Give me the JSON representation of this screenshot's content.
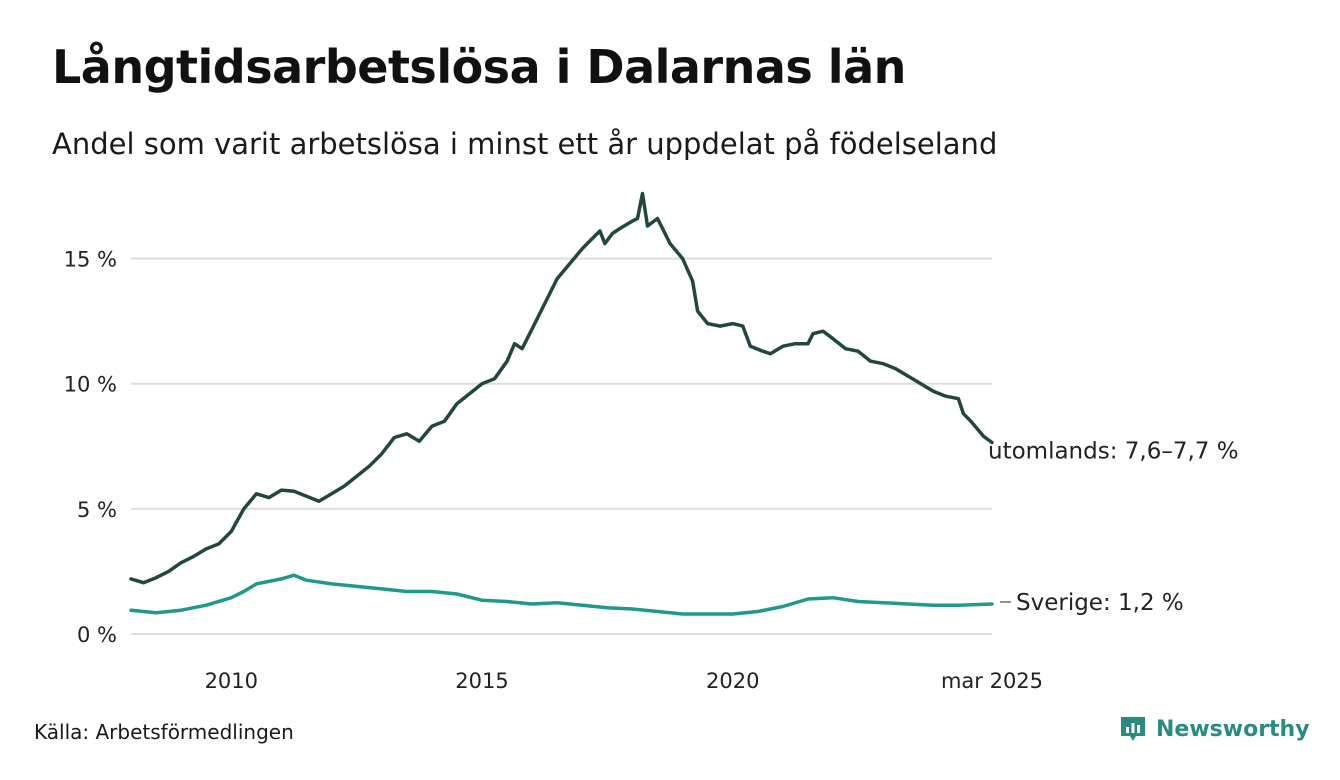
{
  "header": {
    "title": "Långtidsarbetslösa i Dalarnas län",
    "subtitle": "Andel som varit arbetslösa i minst ett år uppdelat på födelseland"
  },
  "footer": {
    "source": "Källa: Arbetsförmedlingen",
    "brand": "Newsworthy",
    "brand_icon": "newsworthy-logo-icon"
  },
  "colors": {
    "utomlands": "#22473d",
    "sverige": "#1f9a8a",
    "grid": "#dddddd",
    "brand": "#2a8c80"
  },
  "chart_data": {
    "type": "line",
    "title": "Långtidsarbetslösa i Dalarnas län",
    "subtitle": "Andel som varit arbetslösa i minst ett år uppdelat på födelseland",
    "xlabel": "",
    "ylabel": "",
    "xlim": [
      2008.0,
      2025.17
    ],
    "ylim": [
      0,
      17.5
    ],
    "x_ticks": [
      {
        "value": 2010,
        "label": "2010"
      },
      {
        "value": 2015,
        "label": "2015"
      },
      {
        "value": 2020,
        "label": "2020"
      },
      {
        "value": 2025.17,
        "label": "mar 2025"
      }
    ],
    "y_ticks": [
      {
        "value": 0,
        "label": "0 %"
      },
      {
        "value": 5,
        "label": "5 %"
      },
      {
        "value": 10,
        "label": "10 %"
      },
      {
        "value": 15,
        "label": "15 %"
      }
    ],
    "grid": true,
    "series": [
      {
        "name": "utomlands",
        "end_label": "utomlands: 7,6–7,7 %",
        "points": [
          [
            2008.0,
            2.2
          ],
          [
            2008.25,
            2.05
          ],
          [
            2008.5,
            2.25
          ],
          [
            2008.75,
            2.5
          ],
          [
            2009.0,
            2.85
          ],
          [
            2009.25,
            3.1
          ],
          [
            2009.5,
            3.4
          ],
          [
            2009.75,
            3.6
          ],
          [
            2010.0,
            4.1
          ],
          [
            2010.25,
            5.0
          ],
          [
            2010.5,
            5.6
          ],
          [
            2010.75,
            5.45
          ],
          [
            2011.0,
            5.75
          ],
          [
            2011.25,
            5.7
          ],
          [
            2011.5,
            5.5
          ],
          [
            2011.75,
            5.3
          ],
          [
            2012.0,
            5.6
          ],
          [
            2012.25,
            5.9
          ],
          [
            2012.5,
            6.3
          ],
          [
            2012.75,
            6.7
          ],
          [
            2013.0,
            7.2
          ],
          [
            2013.25,
            7.85
          ],
          [
            2013.5,
            8.0
          ],
          [
            2013.75,
            7.7
          ],
          [
            2014.0,
            8.3
          ],
          [
            2014.25,
            8.5
          ],
          [
            2014.5,
            9.2
          ],
          [
            2014.75,
            9.6
          ],
          [
            2015.0,
            10.0
          ],
          [
            2015.25,
            10.2
          ],
          [
            2015.5,
            10.9
          ],
          [
            2015.65,
            11.6
          ],
          [
            2015.8,
            11.4
          ],
          [
            2016.0,
            12.2
          ],
          [
            2016.25,
            13.2
          ],
          [
            2016.5,
            14.2
          ],
          [
            2016.75,
            14.8
          ],
          [
            2017.0,
            15.4
          ],
          [
            2017.25,
            15.9
          ],
          [
            2017.35,
            16.1
          ],
          [
            2017.45,
            15.6
          ],
          [
            2017.6,
            16.0
          ],
          [
            2017.75,
            16.2
          ],
          [
            2018.0,
            16.5
          ],
          [
            2018.1,
            16.6
          ],
          [
            2018.2,
            17.6
          ],
          [
            2018.3,
            16.3
          ],
          [
            2018.5,
            16.6
          ],
          [
            2018.75,
            15.6
          ],
          [
            2019.0,
            15.0
          ],
          [
            2019.2,
            14.1
          ],
          [
            2019.3,
            12.9
          ],
          [
            2019.5,
            12.4
          ],
          [
            2019.75,
            12.3
          ],
          [
            2020.0,
            12.4
          ],
          [
            2020.2,
            12.3
          ],
          [
            2020.35,
            11.5
          ],
          [
            2020.6,
            11.3
          ],
          [
            2020.75,
            11.2
          ],
          [
            2021.0,
            11.5
          ],
          [
            2021.25,
            11.6
          ],
          [
            2021.5,
            11.6
          ],
          [
            2021.6,
            12.0
          ],
          [
            2021.8,
            12.1
          ],
          [
            2022.0,
            11.8
          ],
          [
            2022.25,
            11.4
          ],
          [
            2022.5,
            11.3
          ],
          [
            2022.75,
            10.9
          ],
          [
            2023.0,
            10.8
          ],
          [
            2023.25,
            10.6
          ],
          [
            2023.5,
            10.3
          ],
          [
            2023.75,
            10.0
          ],
          [
            2024.0,
            9.7
          ],
          [
            2024.25,
            9.5
          ],
          [
            2024.5,
            9.4
          ],
          [
            2024.6,
            8.8
          ],
          [
            2024.75,
            8.5
          ],
          [
            2025.0,
            7.9
          ],
          [
            2025.17,
            7.65
          ]
        ]
      },
      {
        "name": "Sverige",
        "end_label": "Sverige: 1,2 %",
        "points": [
          [
            2008.0,
            0.95
          ],
          [
            2008.5,
            0.85
          ],
          [
            2009.0,
            0.95
          ],
          [
            2009.5,
            1.15
          ],
          [
            2010.0,
            1.45
          ],
          [
            2010.25,
            1.7
          ],
          [
            2010.5,
            2.0
          ],
          [
            2010.75,
            2.1
          ],
          [
            2011.0,
            2.2
          ],
          [
            2011.25,
            2.35
          ],
          [
            2011.5,
            2.15
          ],
          [
            2012.0,
            2.0
          ],
          [
            2012.5,
            1.9
          ],
          [
            2013.0,
            1.8
          ],
          [
            2013.5,
            1.7
          ],
          [
            2014.0,
            1.7
          ],
          [
            2014.5,
            1.6
          ],
          [
            2015.0,
            1.35
          ],
          [
            2015.5,
            1.3
          ],
          [
            2016.0,
            1.2
          ],
          [
            2016.5,
            1.25
          ],
          [
            2017.0,
            1.15
          ],
          [
            2017.5,
            1.05
          ],
          [
            2018.0,
            1.0
          ],
          [
            2018.5,
            0.9
          ],
          [
            2019.0,
            0.8
          ],
          [
            2019.5,
            0.8
          ],
          [
            2020.0,
            0.8
          ],
          [
            2020.5,
            0.9
          ],
          [
            2021.0,
            1.1
          ],
          [
            2021.5,
            1.4
          ],
          [
            2022.0,
            1.45
          ],
          [
            2022.5,
            1.3
          ],
          [
            2023.0,
            1.25
          ],
          [
            2023.5,
            1.2
          ],
          [
            2024.0,
            1.15
          ],
          [
            2024.5,
            1.15
          ],
          [
            2025.17,
            1.2
          ]
        ]
      }
    ]
  }
}
